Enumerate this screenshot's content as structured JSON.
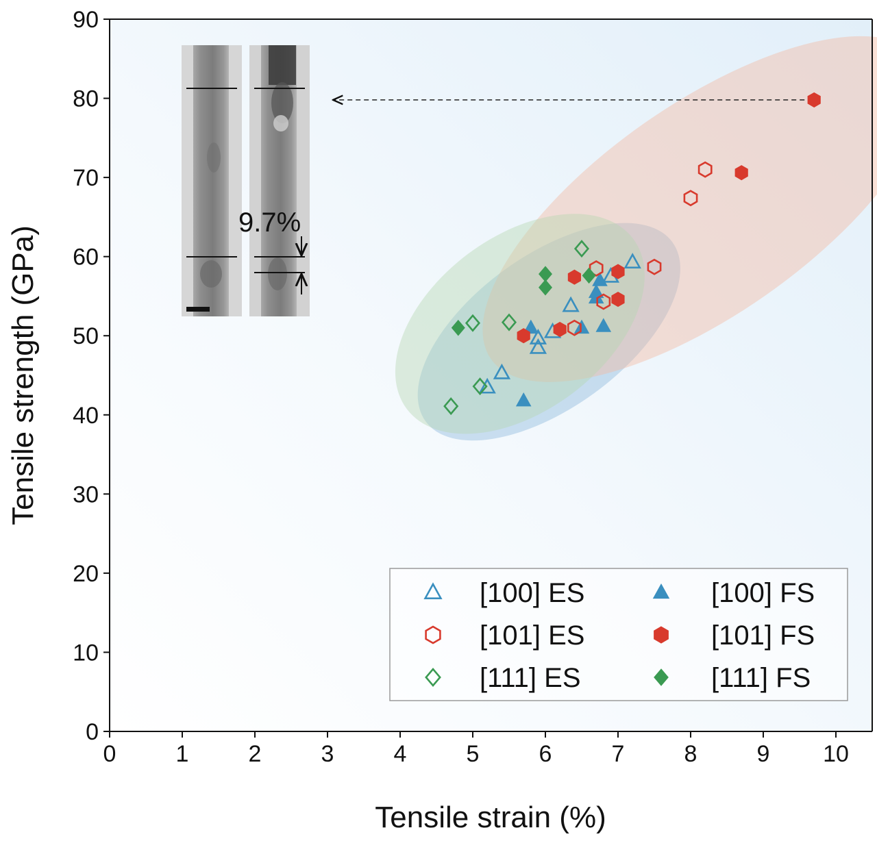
{
  "chart_data": {
    "type": "scatter",
    "title": "",
    "xlabel": "Tensile strain (%)",
    "ylabel": "Tensile strength (GPa)",
    "xlim": [
      0,
      10.5
    ],
    "ylim": [
      0,
      90
    ],
    "xticks": [
      "0",
      "1",
      "2",
      "3",
      "4",
      "5",
      "6",
      "7",
      "8",
      "9",
      "10"
    ],
    "yticks": [
      "0",
      "10",
      "20",
      "30",
      "40",
      "50",
      "60",
      "70",
      "80",
      "90"
    ],
    "grid": false,
    "legend_position": "bottom-right",
    "series": [
      {
        "name": "[100] ES",
        "marker": "triangle",
        "filled": false,
        "color": "#3a8fbf",
        "points": [
          [
            5.2,
            43.5
          ],
          [
            5.4,
            45.3
          ],
          [
            5.9,
            48.5
          ],
          [
            5.9,
            49.7
          ],
          [
            6.1,
            50.5
          ],
          [
            6.35,
            53.8
          ],
          [
            6.9,
            57.5
          ],
          [
            7.2,
            59.3
          ]
        ]
      },
      {
        "name": "[100] FS",
        "marker": "triangle",
        "filled": true,
        "color": "#3a8fbf",
        "points": [
          [
            5.7,
            41.8
          ],
          [
            5.8,
            51.0
          ],
          [
            6.5,
            51.0
          ],
          [
            6.7,
            54.8
          ],
          [
            6.7,
            55.5
          ],
          [
            6.75,
            57.0
          ],
          [
            6.8,
            51.2
          ]
        ]
      },
      {
        "name": "[101] ES",
        "marker": "hexagon",
        "filled": false,
        "color": "#d83a2d",
        "points": [
          [
            6.4,
            51.0
          ],
          [
            6.7,
            58.5
          ],
          [
            6.8,
            54.3
          ],
          [
            7.5,
            58.7
          ],
          [
            8.0,
            67.4
          ],
          [
            8.2,
            71.0
          ]
        ]
      },
      {
        "name": "[101] FS",
        "marker": "hexagon",
        "filled": true,
        "color": "#d83a2d",
        "points": [
          [
            5.7,
            50.0
          ],
          [
            6.2,
            50.8
          ],
          [
            6.4,
            57.4
          ],
          [
            7.0,
            54.6
          ],
          [
            7.0,
            58.1
          ],
          [
            8.7,
            70.6
          ],
          [
            9.7,
            79.8
          ]
        ]
      },
      {
        "name": "[111] ES",
        "marker": "diamond",
        "filled": false,
        "color": "#3a9a52",
        "points": [
          [
            4.7,
            41.1
          ],
          [
            5.0,
            51.6
          ],
          [
            5.1,
            43.6
          ],
          [
            5.5,
            51.7
          ],
          [
            6.5,
            61.0
          ]
        ]
      },
      {
        "name": "[111] FS",
        "marker": "diamond",
        "filled": true,
        "color": "#3a9a52",
        "points": [
          [
            4.8,
            51.0
          ],
          [
            6.0,
            56.1
          ],
          [
            6.0,
            57.8
          ],
          [
            6.6,
            57.6
          ]
        ]
      }
    ],
    "regions": [
      {
        "group": "[100]",
        "color": "#8ab8dc",
        "center": [
          6.05,
          50.5
        ],
        "angle": 36,
        "rx": 2.1,
        "ry": 1.05
      },
      {
        "group": "[101]",
        "color": "#f2b8a0",
        "center": [
          8.2,
          66.0
        ],
        "angle": 35,
        "rx": 3.6,
        "ry": 1.45
      },
      {
        "group": "[111]",
        "color": "#b6d6b0",
        "center": [
          5.65,
          51.5
        ],
        "angle": 37,
        "rx": 1.95,
        "ry": 1.2
      }
    ],
    "annotations": [
      {
        "text": "9.7%",
        "type": "inset-strain-label"
      },
      {
        "type": "arrow",
        "from": [
          9.7,
          79.8
        ],
        "to": "inset",
        "style": "dashed"
      }
    ]
  }
}
